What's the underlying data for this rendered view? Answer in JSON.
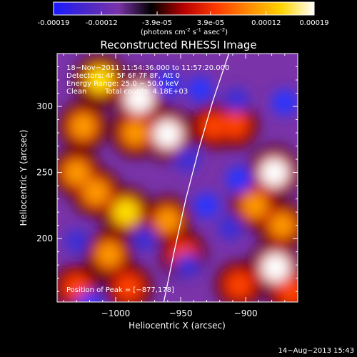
{
  "colorbar": {
    "tick_labels": [
      "-0.00019",
      "-0.00012",
      "-3.9e-05",
      "3.9e-05",
      "0.00012",
      "0.00019"
    ],
    "tick_values": [
      -0.00019,
      -0.00012,
      -3.9e-05,
      3.9e-05,
      0.00012,
      0.00019
    ],
    "units_label": "(photons cm",
    "units_exp1": "-2",
    "units_mid": " s",
    "units_exp2": "-1",
    "units_mid2": " asec",
    "units_exp3": "-2",
    "units_end": ")",
    "colors": [
      "#1a1aff",
      "#4a28c8",
      "#7a33a8",
      "#000000",
      "#b80000",
      "#ff3a00",
      "#ff8c00",
      "#ffd400",
      "#ffffff"
    ]
  },
  "chart_data": {
    "type": "heatmap",
    "title": "Reconstructed RHESSI Image",
    "xlabel": "Heliocentric X (arcsec)",
    "ylabel": "Heliocentric Y (arcsec)",
    "xlim": [
      -1045,
      -860
    ],
    "ylim": [
      152,
      340
    ],
    "x_ticks": [
      -1000,
      -950,
      -900
    ],
    "x_tick_labels": [
      "−1000",
      "−950",
      "−900"
    ],
    "y_ticks": [
      200,
      250,
      300
    ],
    "y_tick_labels": [
      "200",
      "250",
      "300"
    ],
    "peak_position": [
      -877,
      178
    ],
    "limb_curve": [
      [
        -963,
        152
      ],
      [
        -955,
        190
      ],
      [
        -946,
        230
      ],
      [
        -936,
        268
      ],
      [
        -925,
        305
      ],
      [
        -913,
        340
      ]
    ],
    "hot_spots": [
      {
        "x": -1012,
        "y": 320,
        "v": 0.85
      },
      {
        "x": -982,
        "y": 306,
        "v": 1.0
      },
      {
        "x": -960,
        "y": 279,
        "v": 0.95
      },
      {
        "x": -985,
        "y": 280,
        "v": 0.7
      },
      {
        "x": -1025,
        "y": 285,
        "v": 0.75
      },
      {
        "x": -1030,
        "y": 250,
        "v": 0.7
      },
      {
        "x": -1015,
        "y": 235,
        "v": 0.75
      },
      {
        "x": -992,
        "y": 220,
        "v": 0.8
      },
      {
        "x": -960,
        "y": 214,
        "v": 0.65
      },
      {
        "x": -948,
        "y": 188,
        "v": 0.55
      },
      {
        "x": -1005,
        "y": 188,
        "v": 0.7
      },
      {
        "x": -1030,
        "y": 163,
        "v": 0.55
      },
      {
        "x": -990,
        "y": 163,
        "v": 0.6
      },
      {
        "x": -925,
        "y": 285,
        "v": 0.5
      },
      {
        "x": -908,
        "y": 286,
        "v": 0.55
      },
      {
        "x": -878,
        "y": 250,
        "v": 0.95
      },
      {
        "x": -893,
        "y": 225,
        "v": 0.7
      },
      {
        "x": -872,
        "y": 210,
        "v": 0.65
      },
      {
        "x": -877,
        "y": 178,
        "v": 1.0
      },
      {
        "x": -905,
        "y": 165,
        "v": 0.6
      },
      {
        "x": -865,
        "y": 160,
        "v": 0.6
      }
    ],
    "cold_spots": [
      {
        "x": -960,
        "y": 317,
        "v": -0.9
      },
      {
        "x": -935,
        "y": 313,
        "v": -0.85
      },
      {
        "x": -907,
        "y": 305,
        "v": -0.75
      },
      {
        "x": -870,
        "y": 303,
        "v": -0.95
      },
      {
        "x": -945,
        "y": 260,
        "v": -0.8
      },
      {
        "x": -905,
        "y": 245,
        "v": -0.9
      },
      {
        "x": -1030,
        "y": 198,
        "v": -0.75
      },
      {
        "x": -978,
        "y": 200,
        "v": -0.7
      },
      {
        "x": -930,
        "y": 225,
        "v": -0.85
      },
      {
        "x": -945,
        "y": 180,
        "v": -0.7
      },
      {
        "x": -912,
        "y": 208,
        "v": -0.8
      },
      {
        "x": -1020,
        "y": 150,
        "v": -0.85
      }
    ]
  },
  "annotation": {
    "time_range": "18−Nov−2011 11:54:36.000 to 11:57:20.000",
    "detectors": "Detectors: 4F 5F 6F 7F 8F, Att 0",
    "energy_range": "Energy Range: 25.0 − 50.0 keV",
    "clean": "Clean",
    "total_counts": "Total counts: 4.18E+03",
    "peak": "Position of Peak = [−877,178]"
  },
  "footer": {
    "timestamp": "14−Aug−2013 15:43"
  }
}
